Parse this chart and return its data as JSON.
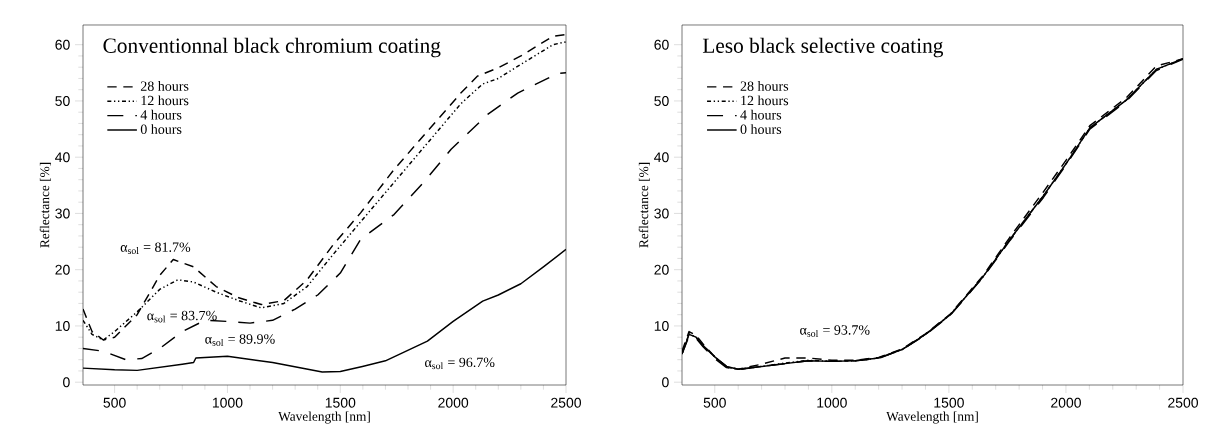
{
  "chart_data": [
    {
      "type": "line",
      "title": "Conventionnal black chromium coating",
      "xlabel": "Wavelength [nm]",
      "ylabel": "Reflectance [%]",
      "xlim": [
        360,
        2500
      ],
      "ylim": [
        -0.5,
        63.5
      ],
      "xticks": [
        500,
        1000,
        1500,
        2000,
        2500
      ],
      "yticks": [
        0,
        10,
        20,
        30,
        40,
        50,
        60
      ],
      "legend": "top left",
      "grid": false,
      "series": [
        {
          "name": "28 hours",
          "color": "#000000",
          "line_style": "dashed",
          "x": [
            360,
            400,
            450,
            500,
            600,
            700,
            760,
            850,
            950,
            1050,
            1150,
            1250,
            1353,
            1464,
            1590,
            1738,
            1886,
            2034,
            2107,
            2200,
            2300,
            2442,
            2500
          ],
          "values": [
            13,
            9,
            7.5,
            8,
            12,
            19,
            21.8,
            20.5,
            17,
            15,
            13.8,
            14.5,
            18.2,
            24.2,
            30.1,
            37.8,
            44.6,
            51.4,
            54.4,
            55.9,
            58,
            61.5,
            61.8
          ]
        },
        {
          "name": "12 hours",
          "color": "#000000",
          "line_style": "dotted",
          "x": [
            360,
            400,
            450,
            500,
            600,
            700,
            780,
            850,
            950,
            1050,
            1150,
            1250,
            1353,
            1464,
            1590,
            1738,
            1886,
            2034,
            2130,
            2200,
            2300,
            2442,
            2500
          ],
          "values": [
            11,
            8.5,
            7.5,
            9,
            12.5,
            16.5,
            18.2,
            17.8,
            16,
            14.5,
            13.2,
            14,
            17,
            22.5,
            28.5,
            35.5,
            42.5,
            49.5,
            53,
            54,
            56.5,
            60,
            60.5
          ]
        },
        {
          "name": "4 hours",
          "color": "#000000",
          "line_style": "dashed",
          "x": [
            360,
            450,
            550,
            620,
            700,
            800,
            900,
            1000,
            1100,
            1200,
            1300,
            1400,
            1500,
            1590,
            1738,
            1873,
            1991,
            2153,
            2286,
            2464,
            2500
          ],
          "values": [
            6,
            5.5,
            4,
            4.2,
            6,
            9,
            11,
            10.8,
            10.5,
            11,
            13,
            15.5,
            19.4,
            25.4,
            29.8,
            35.7,
            41.4,
            47.6,
            51.4,
            54.9,
            55
          ]
        },
        {
          "name": "0 hours",
          "color": "#000000",
          "line_style": "solid",
          "x": [
            360,
            500,
            600,
            800,
            850,
            860,
            1000,
            1200,
            1420,
            1500,
            1598,
            1700,
            1886,
            2000,
            2131,
            2200,
            2300,
            2400,
            2500
          ],
          "values": [
            2.5,
            2.2,
            2.1,
            3.2,
            3.5,
            4.3,
            4.6,
            3.5,
            1.8,
            1.9,
            2.8,
            3.8,
            7.3,
            10.8,
            14.4,
            15.5,
            17.5,
            20.5,
            23.6
          ]
        }
      ],
      "annotations": [
        "α$_{sol}$ = 81.7%",
        "α$_{sol}$ = 83.7%",
        "α$_{sol}$ = 89.9%",
        "α$_{sol}$ = 96.7%"
      ]
    },
    {
      "type": "line",
      "title": "Leso black selective coating",
      "xlabel": "Wavelength [nm]",
      "ylabel": "Reflectance [%]",
      "xlim": [
        360,
        2500
      ],
      "ylim": [
        -0.5,
        63.5
      ],
      "xticks": [
        500,
        1000,
        1500,
        2000,
        2500
      ],
      "yticks": [
        0,
        10,
        20,
        30,
        40,
        50,
        60
      ],
      "legend": "top left",
      "grid": false,
      "series": [
        {
          "name": "28 hours",
          "color": "#000000",
          "line_style": "dashed",
          "x": [
            360,
            390,
            420,
            450,
            500,
            550,
            600,
            700,
            800,
            900,
            1000,
            1100,
            1200,
            1300,
            1400,
            1506,
            1647,
            1761,
            1903,
            2003,
            2102,
            2259,
            2386,
            2500
          ],
          "values": [
            5.5,
            9,
            8.3,
            6.8,
            4.5,
            2.8,
            2.3,
            3.2,
            4.3,
            4.3,
            3.9,
            3.9,
            4.4,
            5.9,
            8.6,
            12.1,
            19,
            25.8,
            33.8,
            39.6,
            45.6,
            50.6,
            56.2,
            57.5
          ]
        },
        {
          "name": "12 hours",
          "color": "#000000",
          "line_style": "dotted",
          "x": [
            360,
            390,
            420,
            450,
            500,
            550,
            600,
            700,
            800,
            900,
            1000,
            1100,
            1200,
            1300,
            1400,
            1506,
            1647,
            1761,
            1903,
            2003,
            2102,
            2259,
            2386,
            2500
          ],
          "values": [
            5,
            8.6,
            8,
            6.5,
            4.5,
            2.7,
            2.3,
            2.8,
            3.4,
            3.9,
            3.7,
            3.8,
            4.3,
            5.8,
            8.5,
            12,
            18.8,
            25.4,
            33.1,
            39,
            45.2,
            50.2,
            55.6,
            57.5
          ]
        },
        {
          "name": "4 hours",
          "color": "#000000",
          "line_style": "dashed",
          "x": [
            360,
            390,
            420,
            450,
            500,
            550,
            600,
            700,
            800,
            900,
            1000,
            1100,
            1200,
            1300,
            1400,
            1506,
            1647,
            1761,
            1903,
            2003,
            2102,
            2259,
            2386,
            2500
          ],
          "values": [
            5,
            8.2,
            7.8,
            6.3,
            4.2,
            2.6,
            2.2,
            2.8,
            3.3,
            3.8,
            3.7,
            3.8,
            4.2,
            5.8,
            8.4,
            11.9,
            18.7,
            25.2,
            32.8,
            38.8,
            45,
            50,
            55.4,
            57.4
          ]
        },
        {
          "name": "0 hours",
          "color": "#000000",
          "line_style": "solid",
          "x": [
            360,
            390,
            420,
            450,
            500,
            550,
            600,
            700,
            800,
            900,
            1000,
            1100,
            1200,
            1300,
            1400,
            1506,
            1647,
            1761,
            1903,
            2003,
            2102,
            2259,
            2386,
            2500
          ],
          "values": [
            5,
            8.5,
            8,
            6.5,
            4.5,
            2.8,
            2.3,
            2.8,
            3.3,
            3.8,
            3.7,
            3.8,
            4.3,
            5.8,
            8.5,
            12,
            18.8,
            25.4,
            33.1,
            39,
            45.2,
            50.2,
            55.6,
            57.5
          ]
        }
      ],
      "annotations": [
        "α$_{sol}$ = 93.7%"
      ]
    }
  ]
}
